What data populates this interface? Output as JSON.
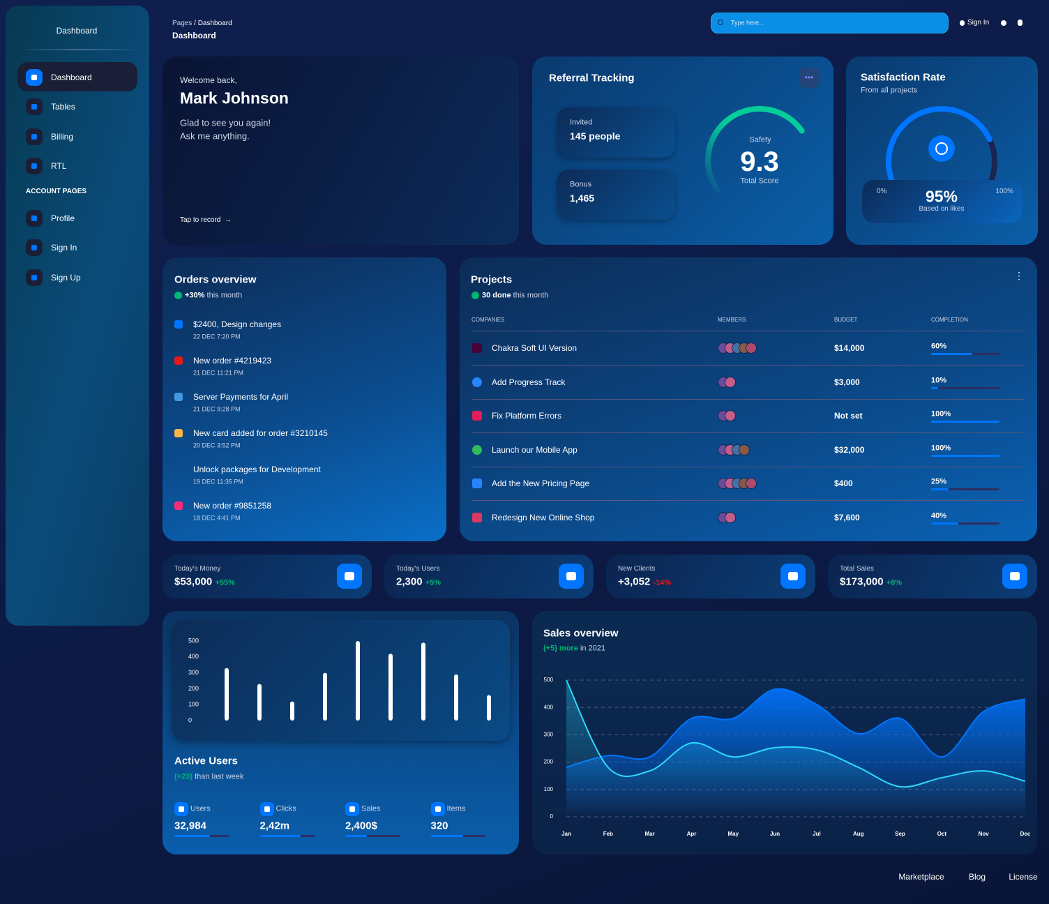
{
  "sidebar": {
    "brand": "Dashboard",
    "nav": [
      "Dashboard",
      "Tables",
      "Billing",
      "RTL"
    ],
    "section": "ACCOUNT PAGES",
    "account_nav": [
      "Profile",
      "Sign In",
      "Sign Up"
    ]
  },
  "topbar": {
    "breadcrumb": [
      "Pages",
      "/",
      "Dashboard"
    ],
    "title": "Dashboard",
    "search_placeholder": "Type here...",
    "sign_in": "Sign In"
  },
  "welcome": {
    "greeting": "Welcome back,",
    "name": "Mark Johnson",
    "message": [
      "Glad to see you again!",
      "Ask me anything."
    ],
    "action": "Tap to record"
  },
  "referral": {
    "title": "Referral Tracking",
    "invited_label": "Invited",
    "invited_value": "145 people",
    "bonus_label": "Bonus",
    "bonus_value": "1,465",
    "gauge_label": "Safety",
    "score": 9.3,
    "score_label": "Total Score"
  },
  "satisfaction": {
    "title": "Satisfaction Rate",
    "subtitle": "From all projects",
    "min_label": "0%",
    "value_label": "95%",
    "max_label": "100%",
    "caption": "Based on likes"
  },
  "orders": {
    "title": "Orders overview",
    "change": "+30%",
    "period": "this month",
    "items": [
      {
        "title": "$2400, Design changes",
        "date": "22 DEC 7:20 PM"
      },
      {
        "title": "New order #4219423",
        "date": "21 DEC 11:21 PM"
      },
      {
        "title": "Server Payments for April",
        "date": "21 DEC 9:28 PM"
      },
      {
        "title": "New card added for order #3210145",
        "date": "20 DEC 3:52 PM"
      },
      {
        "title": "Unlock packages for Development",
        "date": "19 DEC 11:35 PM"
      },
      {
        "title": "New order #9851258",
        "date": "18 DEC 4:41 PM"
      }
    ]
  },
  "projects": {
    "title": "Projects",
    "done": "30 done",
    "period": "this month",
    "columns": [
      "COMPANIES",
      "MEMBERS",
      "BUDGET",
      "COMPLETION"
    ],
    "rows": [
      {
        "company": "Chakra Soft UI Version",
        "budget": "$14,000",
        "completion": "60%"
      },
      {
        "company": "Add Progress Track",
        "budget": "$3,000",
        "completion": "10%"
      },
      {
        "company": "Fix Platform Errors",
        "budget": "Not set",
        "completion": "100%"
      },
      {
        "company": "Launch our Mobile App",
        "budget": "$32,000",
        "completion": "100%"
      },
      {
        "company": "Add the New Pricing Page",
        "budget": "$400",
        "completion": "25%"
      },
      {
        "company": "Redesign New Online Shop",
        "budget": "$7,600",
        "completion": "40%"
      }
    ]
  },
  "stats": [
    {
      "label": "Today's Money",
      "value": "$53,000",
      "change": "+55%"
    },
    {
      "label": "Today's Users",
      "value": "2,300",
      "change": "+5%"
    },
    {
      "label": "New Clients",
      "value": "+3,052",
      "change": "-14%"
    },
    {
      "label": "Total Sales",
      "value": "$173,000",
      "change": "+8%"
    }
  ],
  "active_users": {
    "chart": {
      "type": "bar",
      "values": [
        330,
        230,
        120,
        300,
        500,
        420,
        490,
        290,
        160
      ],
      "ylim": [
        0,
        500
      ],
      "yticks": [
        0,
        100,
        200,
        300,
        400,
        500
      ],
      "color": "#ffffff"
    },
    "title": "Active Users",
    "change": "(+23)",
    "period": "than last week",
    "metrics": [
      {
        "label": "Users",
        "value": "32,984"
      },
      {
        "label": "Clicks",
        "value": "2,42m"
      },
      {
        "label": "Sales",
        "value": "2,400$"
      },
      {
        "label": "Items",
        "value": "320"
      }
    ]
  },
  "sales": {
    "title": "Sales overview",
    "change": "(+5) more",
    "period": "in 2021",
    "chart": {
      "type": "area",
      "categories": [
        "Jan",
        "Feb",
        "Mar",
        "Apr",
        "May",
        "Jun",
        "Jul",
        "Aug",
        "Sep",
        "Oct",
        "Nov",
        "Dec"
      ],
      "series": [
        {
          "color": "#0075ff",
          "values": [
            181,
            224,
            219,
            360,
            360,
            467,
            411,
            304,
            360,
            219,
            385,
            431
          ]
        },
        {
          "color": "#2cd9ff",
          "values": [
            500,
            181,
            168,
            270,
            219,
            253,
            245,
            181,
            110,
            143,
            168,
            130
          ]
        }
      ],
      "ylim": [
        0,
        500
      ],
      "yticks": [
        0,
        100,
        200,
        300,
        400,
        500
      ],
      "grid": true
    }
  },
  "footer": [
    "Marketplace",
    "Blog",
    "License"
  ]
}
